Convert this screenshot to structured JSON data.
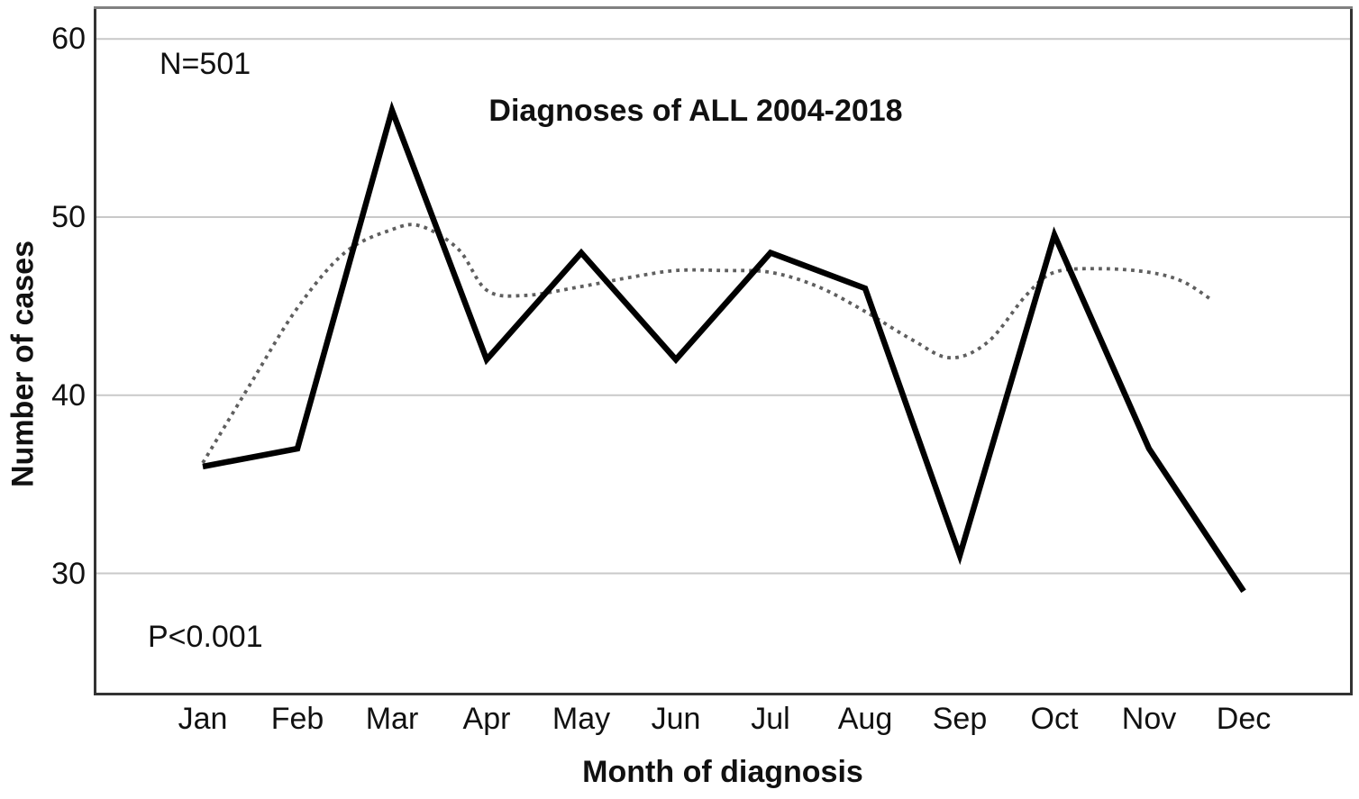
{
  "chart_data": {
    "type": "line",
    "title": "Diagnoses of ALL 2004-2018",
    "xlabel": "Month of diagnosis",
    "ylabel": "Number of cases",
    "categories": [
      "Jan",
      "Feb",
      "Mar",
      "Apr",
      "May",
      "Jun",
      "Jul",
      "Aug",
      "Sep",
      "Oct",
      "Nov",
      "Dec"
    ],
    "yticks": [
      60,
      50,
      40,
      30
    ],
    "ylim": [
      23,
      62
    ],
    "grid": "horizontal",
    "legend": "none",
    "annotations": {
      "sample_size": "N=501",
      "p_value": "P<0.001"
    },
    "series": [
      {
        "name": "observed-cases",
        "style": "solid",
        "color": "#000000",
        "stroke_width": 6.5,
        "values": [
          36,
          37,
          56,
          42,
          48,
          42,
          48,
          46,
          31,
          49,
          37,
          29
        ]
      },
      {
        "name": "fitted-trend",
        "style": "dotted",
        "color": "#5f5f5f",
        "stroke_width": 3.8,
        "points": [
          [
            0,
            36.2
          ],
          [
            0.5,
            40.6
          ],
          [
            1,
            44.9
          ],
          [
            1.5,
            48.0
          ],
          [
            2,
            49.3
          ],
          [
            2.3,
            49.5
          ],
          [
            2.7,
            48.2
          ],
          [
            3,
            45.9
          ],
          [
            3.4,
            45.6
          ],
          [
            4,
            46.1
          ],
          [
            4.5,
            46.6
          ],
          [
            5,
            47.0
          ],
          [
            5.5,
            47.0
          ],
          [
            6,
            46.9
          ],
          [
            6.5,
            46.1
          ],
          [
            7,
            44.7
          ],
          [
            7.5,
            43.1
          ],
          [
            7.9,
            42.1
          ],
          [
            8.3,
            43.0
          ],
          [
            8.7,
            45.6
          ],
          [
            9,
            46.9
          ],
          [
            9.5,
            47.1
          ],
          [
            10,
            46.9
          ],
          [
            10.35,
            46.4
          ],
          [
            10.65,
            45.4
          ]
        ]
      }
    ],
    "colors": {
      "grid": "#c9c9c9",
      "frame": "#333333",
      "frame_top": "#818181",
      "background": "#ffffff",
      "text": "#111111"
    }
  }
}
